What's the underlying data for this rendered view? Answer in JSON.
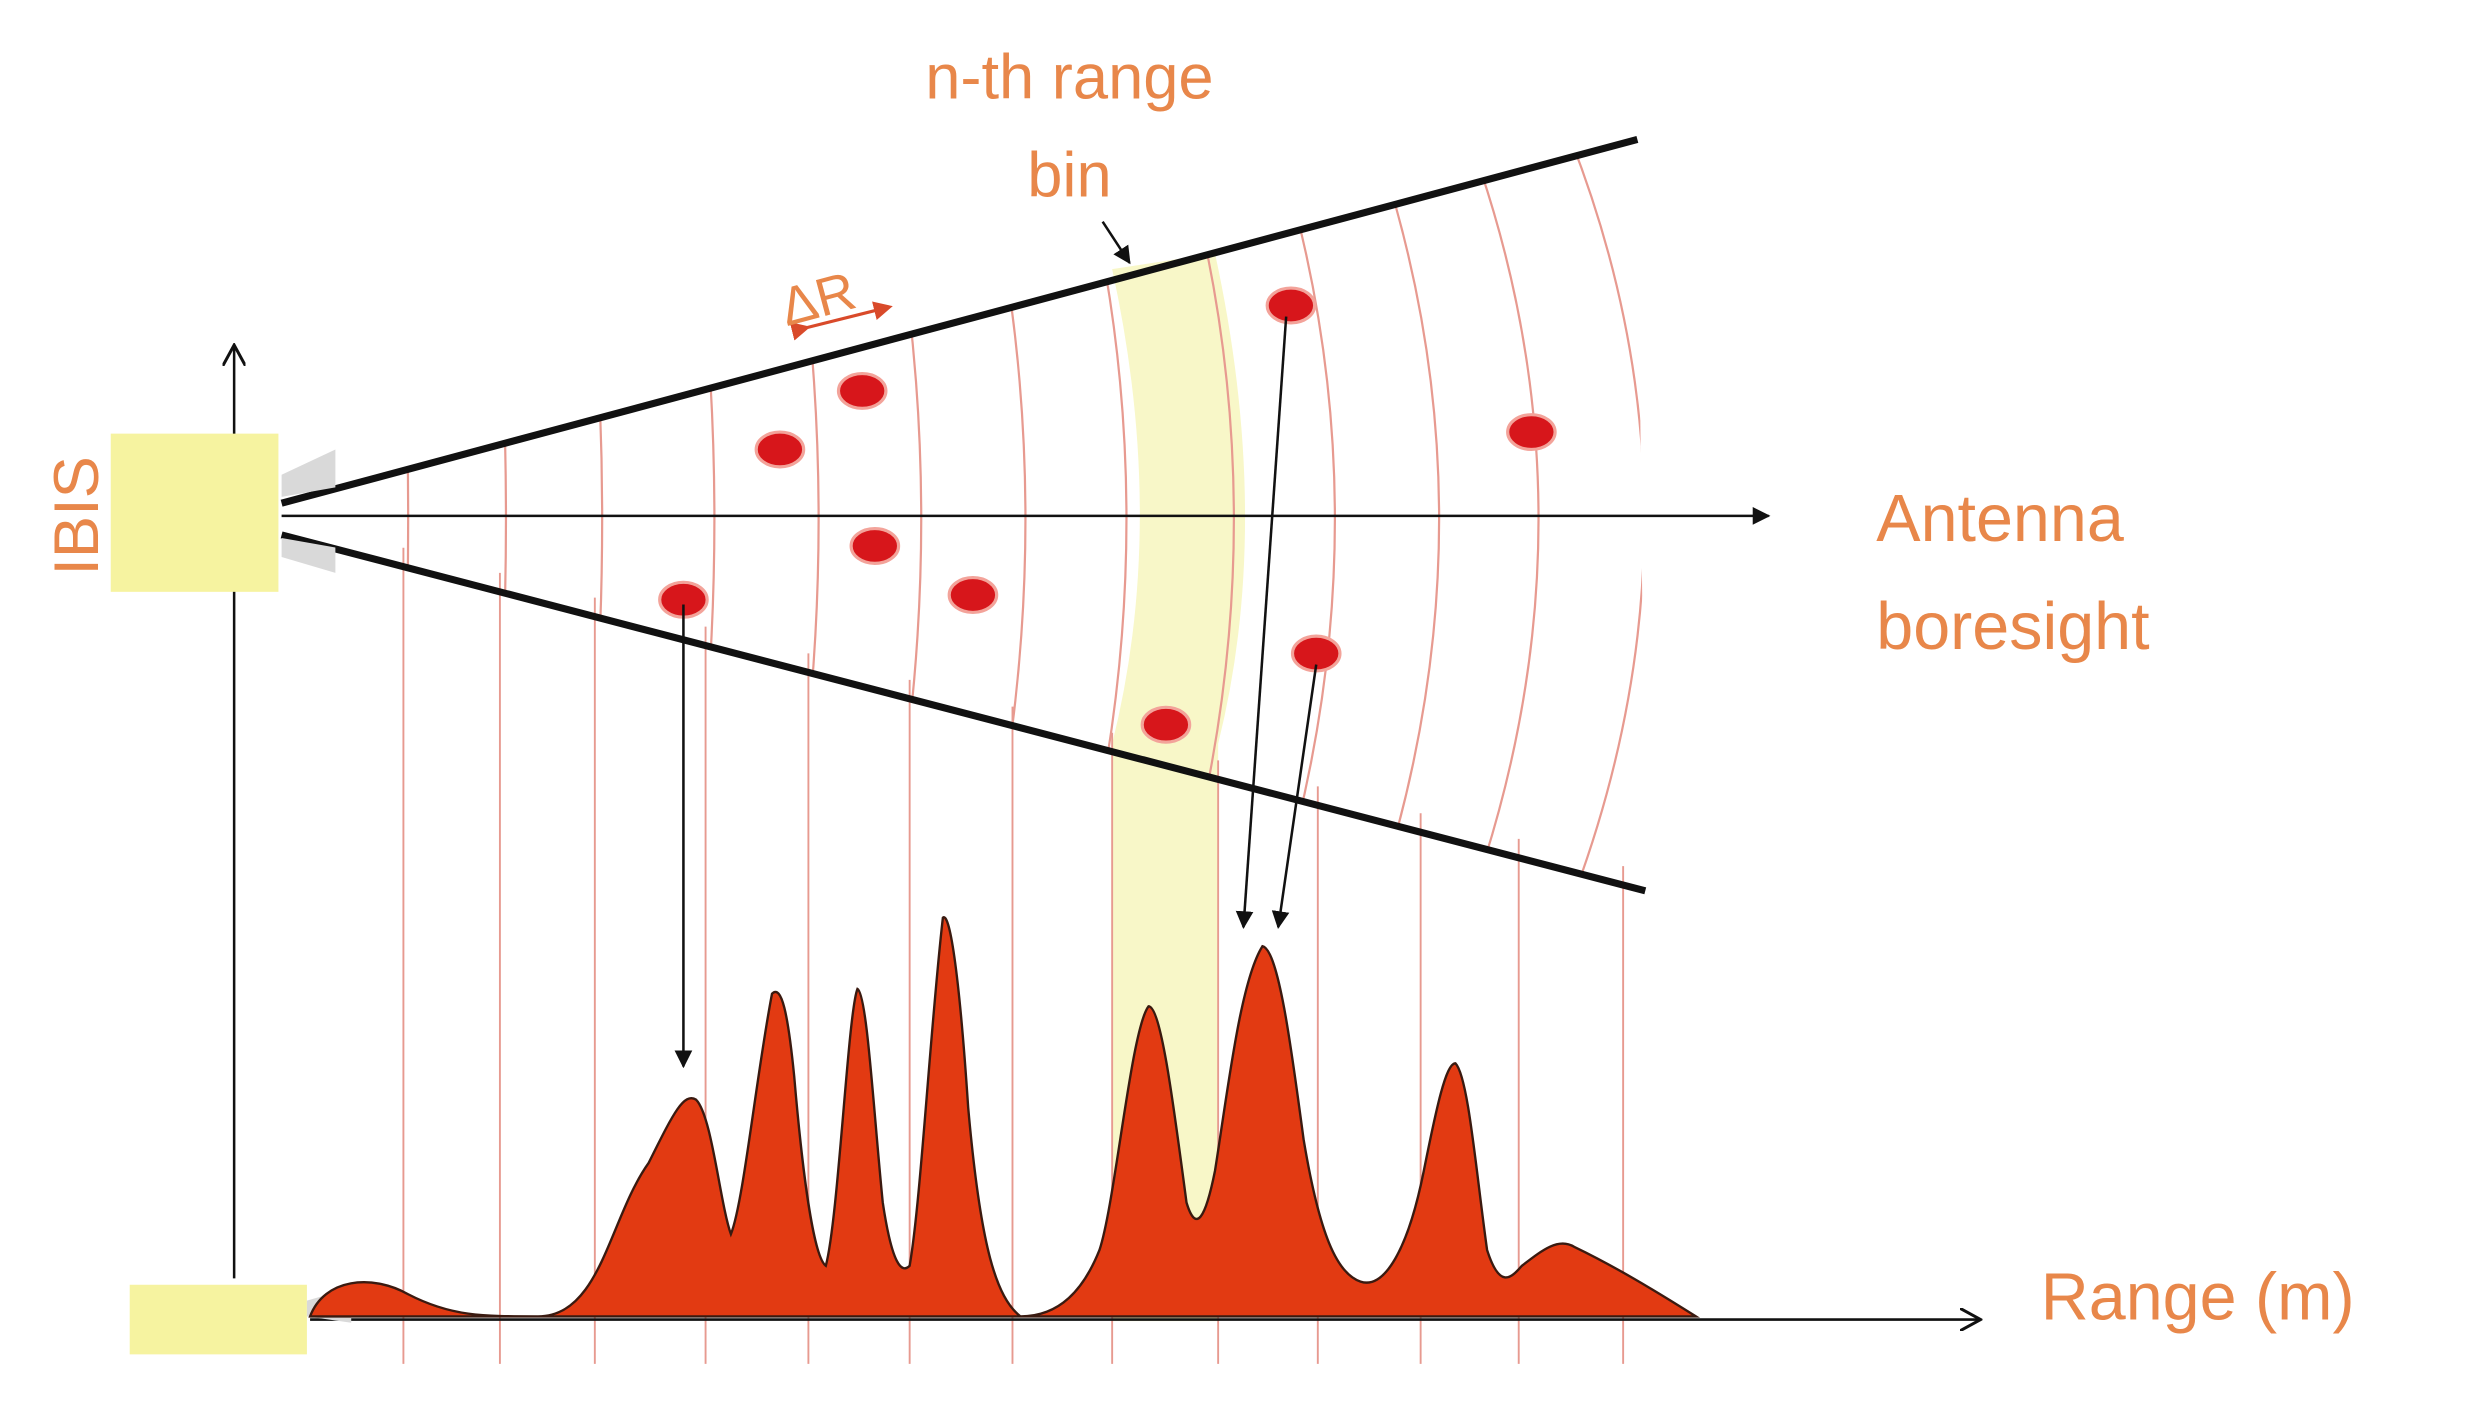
{
  "labels": {
    "range_bin_line1": "n-th range",
    "range_bin_line2": "bin",
    "delta_r": "ΔR",
    "sensor": "IBIS",
    "boresight_line1": "Antenna",
    "boresight_line2": "boresight",
    "range_axis": "Range (m)"
  },
  "colors": {
    "label_orange": "#e8874a",
    "arc_line": "#e79a90",
    "highlight_bin": "#f8f7c8",
    "sensor_box": "#f6f3a0",
    "target_dot": "#d7161b",
    "profile_fill": "#e23a12",
    "line_black": "#111111"
  },
  "targets_count": 9,
  "profile_peaks_count": 9
}
